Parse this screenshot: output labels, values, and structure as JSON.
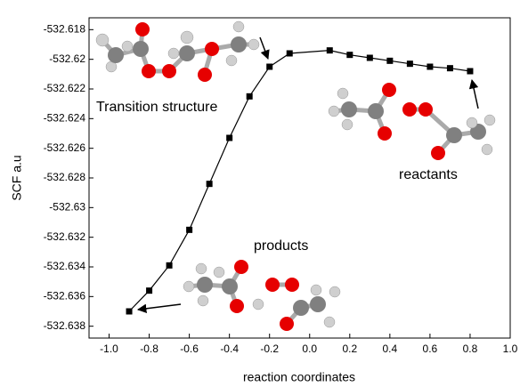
{
  "chart_data": {
    "type": "line",
    "x": [
      -0.9,
      -0.8,
      -0.7,
      -0.6,
      -0.5,
      -0.4,
      -0.3,
      -0.2,
      -0.1,
      0.1,
      0.2,
      0.3,
      0.4,
      0.5,
      0.6,
      0.7,
      0.8
    ],
    "values": [
      -532.637,
      -532.6356,
      -532.6339,
      -532.6315,
      -532.6284,
      -532.6253,
      -532.6225,
      -532.6205,
      -532.6196,
      -532.6194,
      -532.6197,
      -532.6199,
      -532.6201,
      -532.6203,
      -532.6205,
      -532.6206,
      -532.6208
    ],
    "color": "#000000",
    "marker": "square",
    "xlabel": "reaction coordinates",
    "ylabel": "SCF a.u",
    "xlim": [
      -1.1,
      1.0
    ],
    "ylim": [
      -532.6388,
      -532.6172
    ],
    "xticks": [
      {
        "value": -1.0,
        "label": "-1.0"
      },
      -0.8,
      -0.6,
      -0.4,
      -0.2,
      {
        "value": 0,
        "label": "0.0"
      },
      0.2,
      0.4,
      0.6,
      0.8,
      {
        "value": 1.0,
        "label": "1.0"
      }
    ],
    "yticks": [
      -532.638,
      -532.636,
      -532.634,
      -532.632,
      -532.63,
      -532.628,
      -532.626,
      -532.624,
      -532.622,
      -532.62,
      -532.618
    ],
    "annotations": [
      "Transition structure",
      "reactants",
      "products"
    ]
  }
}
